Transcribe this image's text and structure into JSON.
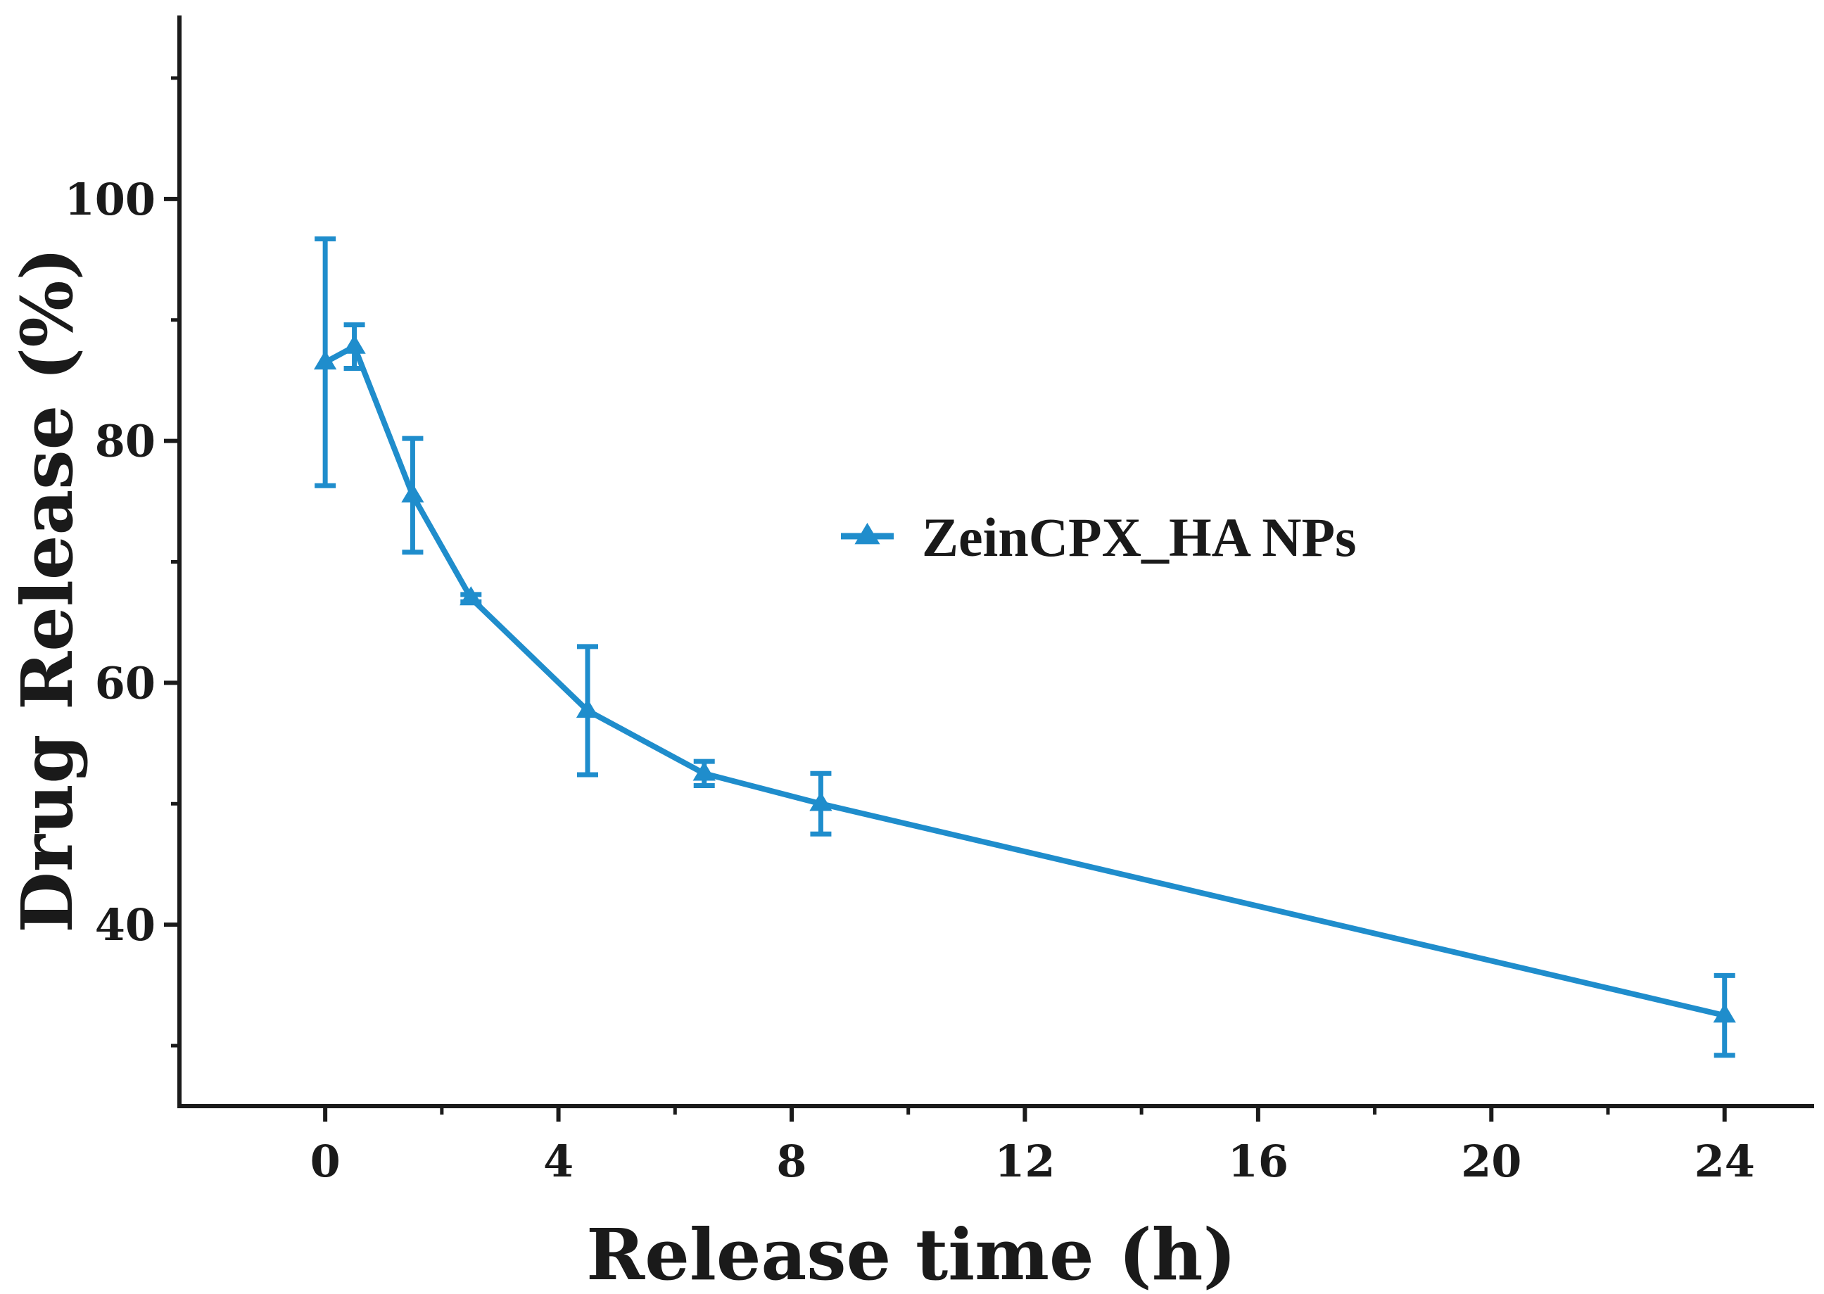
{
  "chart_data": {
    "type": "line",
    "xlabel": "Release time (h)",
    "ylabel": "Drug Release (%)",
    "xlim": [
      -2.5,
      25.5
    ],
    "ylim": [
      25,
      115
    ],
    "x_ticks": [
      0,
      4,
      8,
      12,
      16,
      20,
      24
    ],
    "x_tick_labels": [
      "0",
      "4",
      "8",
      "12",
      "16",
      "20",
      "24"
    ],
    "x_minor_ticks": [
      2,
      6,
      10,
      14,
      18,
      22
    ],
    "y_ticks": [
      40,
      60,
      80,
      100
    ],
    "y_tick_labels": [
      "40",
      "60",
      "80",
      "100"
    ],
    "y_minor_ticks": [
      30,
      50,
      70,
      90,
      110
    ],
    "grid": false,
    "legend_position": "center-right",
    "series": [
      {
        "name": "ZeinCPX_HA NPs",
        "color": "#1f8dcc",
        "marker": "triangle",
        "x": [
          0,
          0.5,
          1.5,
          2.5,
          4.5,
          6.5,
          8.5,
          24
        ],
        "y": [
          86.5,
          87.8,
          75.5,
          67,
          57.7,
          52.5,
          50,
          32.5
        ],
        "error": [
          10.2,
          1.8,
          4.7,
          0.3,
          5.3,
          1,
          2.5,
          3.3
        ]
      }
    ]
  }
}
